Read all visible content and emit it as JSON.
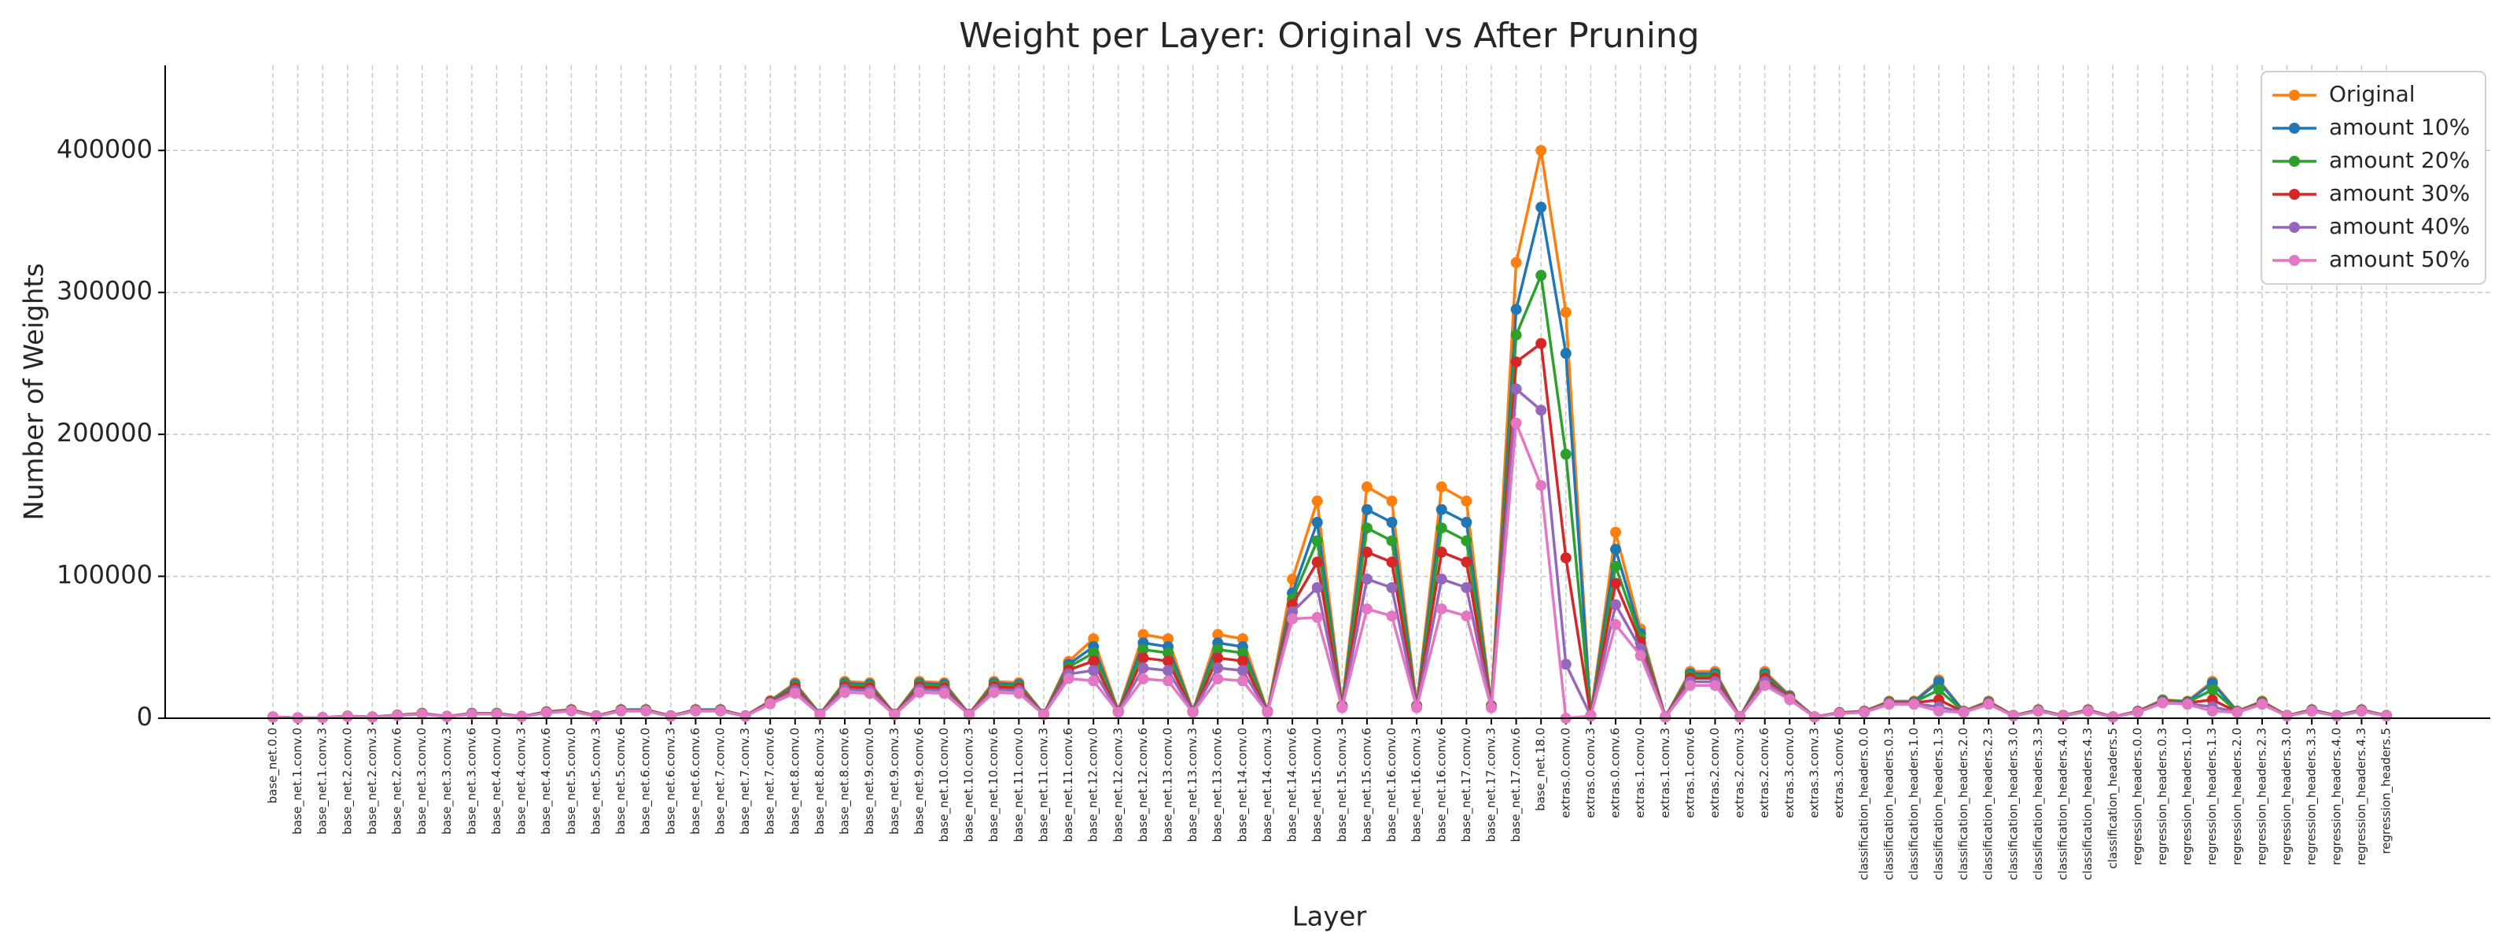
{
  "chart_data": {
    "type": "line",
    "title": "Weight per Layer: Original vs After Pruning",
    "x_label": "Layer",
    "y_label": "Number of Weights",
    "categories": [
      "base_net.0.0",
      "base_net.1.conv.0",
      "base_net.1.conv.3",
      "base_net.2.conv.0",
      "base_net.2.conv.3",
      "base_net.2.conv.6",
      "base_net.3.conv.0",
      "base_net.3.conv.3",
      "base_net.3.conv.6",
      "base_net.4.conv.0",
      "base_net.4.conv.3",
      "base_net.4.conv.6",
      "base_net.5.conv.0",
      "base_net.5.conv.3",
      "base_net.5.conv.6",
      "base_net.6.conv.0",
      "base_net.6.conv.3",
      "base_net.6.conv.6",
      "base_net.7.conv.0",
      "base_net.7.conv.3",
      "base_net.7.conv.6",
      "base_net.8.conv.0",
      "base_net.8.conv.3",
      "base_net.8.conv.6",
      "base_net.9.conv.0",
      "base_net.9.conv.3",
      "base_net.9.conv.6",
      "base_net.10.conv.0",
      "base_net.10.conv.3",
      "base_net.10.conv.6",
      "base_net.11.conv.0",
      "base_net.11.conv.3",
      "base_net.11.conv.6",
      "base_net.12.conv.0",
      "base_net.12.conv.3",
      "base_net.12.conv.6",
      "base_net.13.conv.0",
      "base_net.13.conv.3",
      "base_net.13.conv.6",
      "base_net.14.conv.0",
      "base_net.14.conv.3",
      "base_net.14.conv.6",
      "base_net.15.conv.0",
      "base_net.15.conv.3",
      "base_net.15.conv.6",
      "base_net.16.conv.0",
      "base_net.16.conv.3",
      "base_net.16.conv.6",
      "base_net.17.conv.0",
      "base_net.17.conv.3",
      "base_net.17.conv.6",
      "base_net.18.0",
      "extras.0.conv.0",
      "extras.0.conv.3",
      "extras.0.conv.6",
      "extras.1.conv.0",
      "extras.1.conv.3",
      "extras.1.conv.6",
      "extras.2.conv.0",
      "extras.2.conv.3",
      "extras.2.conv.6",
      "extras.3.conv.0",
      "extras.3.conv.3",
      "extras.3.conv.6",
      "classification_headers.0.0",
      "classification_headers.0.3",
      "classification_headers.1.0",
      "classification_headers.1.3",
      "classification_headers.2.0",
      "classification_headers.2.3",
      "classification_headers.3.0",
      "classification_headers.3.3",
      "classification_headers.4.0",
      "classification_headers.4.3",
      "classification_headers.5",
      "regression_headers.0.0",
      "regression_headers.0.3",
      "regression_headers.1.0",
      "regression_headers.1.3",
      "regression_headers.2.0",
      "regression_headers.2.3",
      "regression_headers.3.0",
      "regression_headers.3.3",
      "regression_headers.4.0",
      "regression_headers.4.3",
      "regression_headers.5"
    ],
    "series": [
      {
        "name": "Original",
        "color": "#ff7f0e",
        "values": [
          900,
          300,
          500,
          1500,
          900,
          2300,
          3500,
          1300,
          3500,
          3500,
          1300,
          4600,
          6100,
          1700,
          6100,
          6100,
          1700,
          6100,
          6100,
          1700,
          12300,
          25000,
          3000,
          26000,
          25000,
          3000,
          26000,
          25000,
          3000,
          26000,
          25000,
          3000,
          40000,
          56000,
          5000,
          59000,
          56000,
          5000,
          59000,
          56000,
          5000,
          98000,
          153000,
          9000,
          163000,
          153000,
          9000,
          163000,
          153000,
          9000,
          321000,
          400000,
          286000,
          2000,
          131000,
          63000,
          1000,
          33000,
          33000,
          1000,
          33000,
          16000,
          1000,
          4000,
          5000,
          12000,
          12000,
          27000,
          5000,
          12000,
          2000,
          6000,
          2000,
          6000,
          1000,
          5000,
          13000,
          12000,
          26000,
          5000,
          12000,
          2000,
          6000,
          2000,
          6000,
          2000
        ]
      },
      {
        "name": "amount 10%",
        "color": "#1f77b4",
        "values": [
          870,
          290,
          490,
          1460,
          870,
          2230,
          3400,
          1260,
          3400,
          3400,
          1260,
          4460,
          5920,
          1650,
          5920,
          5920,
          1650,
          5920,
          5920,
          1650,
          11900,
          23800,
          2900,
          24700,
          23800,
          2900,
          24700,
          23800,
          2900,
          24700,
          23800,
          2900,
          38000,
          50400,
          4850,
          53100,
          50400,
          4850,
          53100,
          50400,
          4850,
          88200,
          138000,
          8700,
          147000,
          138000,
          8700,
          147000,
          138000,
          8700,
          288000,
          360000,
          257000,
          1900,
          119000,
          59800,
          970,
          31400,
          31400,
          970,
          31400,
          15500,
          970,
          3900,
          4850,
          11600,
          11600,
          25700,
          4850,
          11600,
          1900,
          5800,
          1900,
          5800,
          970,
          4850,
          12600,
          11600,
          24700,
          4850,
          11600,
          1900,
          5800,
          1900,
          5800,
          1900
        ]
      },
      {
        "name": "amount 20%",
        "color": "#2ca02c",
        "values": [
          840,
          280,
          470,
          1400,
          840,
          2140,
          3260,
          1210,
          3260,
          3260,
          1210,
          4280,
          5670,
          1580,
          5670,
          5670,
          1580,
          5670,
          5670,
          1580,
          11400,
          22500,
          2800,
          23400,
          22500,
          2800,
          23400,
          22500,
          2800,
          23400,
          22500,
          2800,
          36000,
          46000,
          4650,
          48400,
          46000,
          4650,
          48400,
          46000,
          4650,
          84000,
          125000,
          8400,
          134000,
          125000,
          8400,
          134000,
          125000,
          8400,
          270000,
          312000,
          186000,
          1800,
          107000,
          56700,
          930,
          29700,
          29700,
          930,
          29700,
          14900,
          930,
          3700,
          4650,
          11200,
          11200,
          20000,
          4650,
          11200,
          1900,
          5600,
          1900,
          5600,
          930,
          4650,
          12100,
          11200,
          20000,
          4650,
          11200,
          1900,
          5600,
          1900,
          5600,
          1900
        ]
      },
      {
        "name": "amount 30%",
        "color": "#d62728",
        "values": [
          810,
          270,
          450,
          1350,
          810,
          2070,
          3150,
          1170,
          3150,
          3150,
          1170,
          4140,
          5490,
          1530,
          5490,
          5490,
          1530,
          5490,
          5490,
          1530,
          11100,
          21300,
          2700,
          22100,
          21300,
          2700,
          22100,
          21300,
          2700,
          22100,
          21300,
          2700,
          34000,
          40300,
          4500,
          42500,
          40300,
          4500,
          42500,
          40300,
          4500,
          80000,
          110000,
          8100,
          117000,
          110000,
          8100,
          117000,
          110000,
          8100,
          251000,
          264000,
          113000,
          1800,
          95000,
          53600,
          900,
          28100,
          28100,
          900,
          28100,
          14400,
          900,
          3600,
          4500,
          10800,
          10800,
          13000,
          4500,
          10800,
          1800,
          5400,
          1800,
          5400,
          900,
          4500,
          11700,
          10800,
          13000,
          4500,
          10800,
          1800,
          5400,
          1800,
          5400,
          1800
        ]
      },
      {
        "name": "amount 40%",
        "color": "#9467bd",
        "values": [
          770,
          260,
          430,
          1290,
          770,
          1980,
          3010,
          1120,
          3010,
          3010,
          1120,
          3960,
          5250,
          1460,
          5250,
          5250,
          1460,
          5250,
          5250,
          1460,
          10600,
          19500,
          2600,
          20300,
          19500,
          2600,
          20300,
          19500,
          2600,
          20300,
          19500,
          2600,
          31200,
          33600,
          4300,
          35400,
          33600,
          4300,
          35400,
          33600,
          4300,
          75000,
          92000,
          7700,
          98000,
          92000,
          7700,
          98000,
          92000,
          7700,
          232000,
          217000,
          38000,
          1700,
          80000,
          49100,
          860,
          25700,
          25700,
          860,
          25700,
          13800,
          860,
          3400,
          4300,
          10300,
          10300,
          8000,
          4300,
          10300,
          1700,
          5200,
          1700,
          5200,
          860,
          4300,
          11200,
          10300,
          8000,
          4300,
          10300,
          1700,
          5200,
          1700,
          5200,
          1700
        ]
      },
      {
        "name": "amount 50%",
        "color": "#e377c2",
        "values": [
          740,
          250,
          410,
          1230,
          740,
          1890,
          2870,
          1070,
          2870,
          2870,
          1070,
          3770,
          5000,
          1390,
          5000,
          5000,
          1390,
          5000,
          5000,
          1390,
          10100,
          17500,
          2500,
          18200,
          17500,
          2500,
          18200,
          17500,
          2500,
          18200,
          17500,
          2500,
          28000,
          26300,
          4100,
          27700,
          26300,
          4100,
          27700,
          26300,
          4100,
          70000,
          71000,
          7400,
          77000,
          72000,
          7400,
          77000,
          72000,
          7400,
          208000,
          164000,
          0,
          1600,
          66000,
          44100,
          820,
          23100,
          23100,
          820,
          23100,
          13100,
          820,
          3300,
          4100,
          9800,
          9800,
          5000,
          4100,
          9800,
          1600,
          4900,
          1600,
          4900,
          820,
          4100,
          10700,
          9800,
          5000,
          4100,
          9800,
          1600,
          4900,
          1600,
          4900,
          1600
        ]
      }
    ],
    "ylim": [
      0,
      460000
    ],
    "yticks": [
      0,
      100000,
      200000,
      300000,
      400000
    ],
    "grid": true,
    "legend": "upper right"
  }
}
